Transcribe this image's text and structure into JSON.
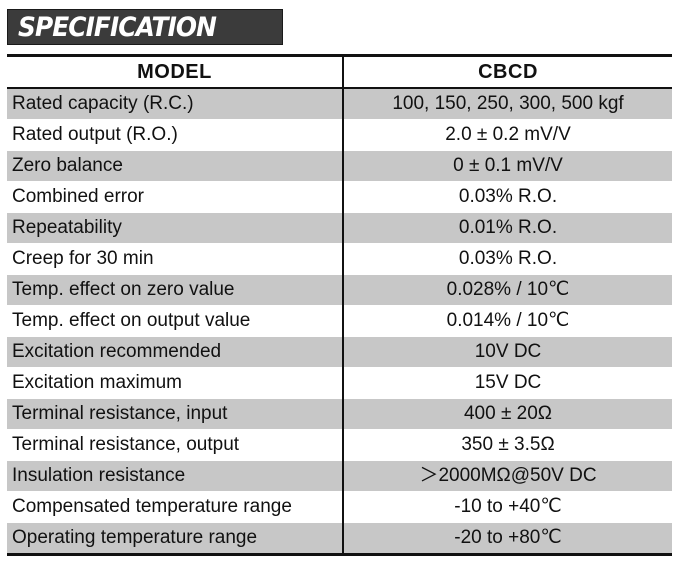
{
  "title": "SPECIFICATION",
  "table": {
    "headers": [
      "MODEL",
      "CBCD"
    ],
    "rows": [
      {
        "label": "Rated capacity (R.C.)",
        "value": "100, 150, 250, 300, 500 kgf"
      },
      {
        "label": "Rated output (R.O.)",
        "value": "2.0 ± 0.2 mV/V"
      },
      {
        "label": "Zero balance",
        "value": "0 ± 0.1 mV/V"
      },
      {
        "label": "Combined error",
        "value": "0.03% R.O."
      },
      {
        "label": "Repeatability",
        "value": "0.01% R.O."
      },
      {
        "label": "Creep for 30 min",
        "value": "0.03% R.O."
      },
      {
        "label": "Temp. effect on zero value",
        "value": "0.028% / 10℃"
      },
      {
        "label": "Temp. effect on output value",
        "value": "0.014% / 10℃"
      },
      {
        "label": "Excitation recommended",
        "value": "10V DC"
      },
      {
        "label": "Excitation maximum",
        "value": "15V DC"
      },
      {
        "label": "Terminal resistance, input",
        "value": "400 ± 20Ω"
      },
      {
        "label": "Terminal resistance, output",
        "value": "350 ± 3.5Ω"
      },
      {
        "label": "Insulation resistance",
        "value": "＞2000MΩ@50V DC"
      },
      {
        "label": "Compensated temperature range",
        "value": "-10 to +40℃"
      },
      {
        "label": "Operating temperature range",
        "value": "-20 to +80℃"
      }
    ]
  },
  "colors": {
    "title_bg": "#3b3b3b",
    "title_text": "#ffffff",
    "row_shaded": "#c7c7c7",
    "row_plain": "#ffffff",
    "rule": "#111111"
  }
}
